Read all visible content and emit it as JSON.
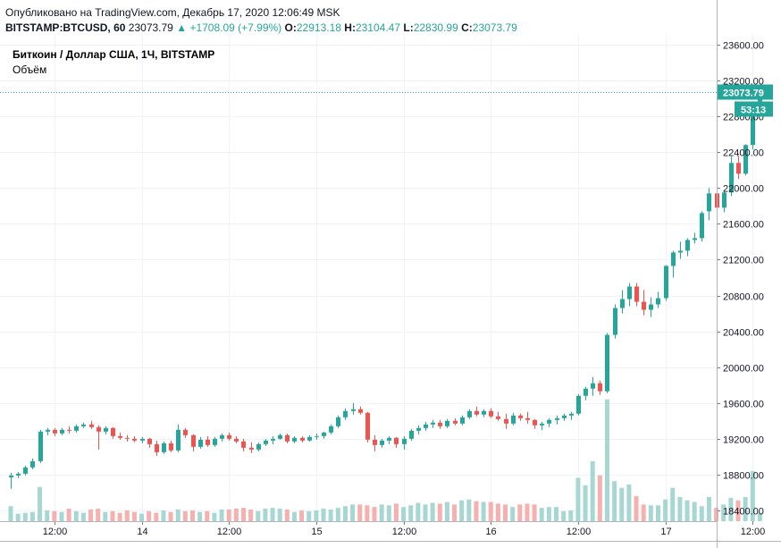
{
  "header": {
    "published": "Опубликовано на TradingView.com, Декабрь 17, 2020 12:06:49 MSK",
    "symbol": "BITSTAMP:BTCUSD, 60",
    "price": "23073.79",
    "change_arrow": "▲",
    "change": "+1708.09 (+7.99%)",
    "o_label": "O:",
    "o": "22913.18",
    "h_label": "H:",
    "h": "23104.47",
    "l_label": "L:",
    "l": "22830.99",
    "c_label": "C:",
    "c": "23073.79"
  },
  "legend": {
    "title": "Биткоин / Доллар США, 1Ч, BITSTAMP",
    "volume": "Объём"
  },
  "price_badge": {
    "value": "23073.79",
    "countdown": "53:13"
  },
  "colors": {
    "up": "#26a69a",
    "down": "#ef5350",
    "up_vol": "#a7d7d2",
    "down_vol": "#f6b0ae",
    "grid": "#f0f3fa",
    "axis": "#131722"
  },
  "chart_data": {
    "type": "candlestick",
    "yaxis": {
      "min": 18280,
      "max": 23720,
      "ticks": [
        "23600.00",
        "23200.00",
        "22800.00",
        "22400.00",
        "22000.00",
        "21600.00",
        "21200.00",
        "20800.00",
        "20400.00",
        "20000.00",
        "19600.00",
        "19200.00",
        "18800.00",
        "18400.00"
      ]
    },
    "xaxis": {
      "ticks": [
        {
          "index": 6,
          "label": "12:00"
        },
        {
          "index": 18,
          "label": "14"
        },
        {
          "index": 30,
          "label": "12:00"
        },
        {
          "index": 42,
          "label": "15"
        },
        {
          "index": 54,
          "label": "12:00"
        },
        {
          "index": 66,
          "label": "16"
        },
        {
          "index": 78,
          "label": "12:00"
        },
        {
          "index": 90,
          "label": "17"
        },
        {
          "index": 102,
          "label": "12:00"
        }
      ]
    },
    "last_price": 23073.79,
    "candles": [
      [
        18770,
        18820,
        18640,
        18790,
        180
      ],
      [
        18790,
        18830,
        18760,
        18810,
        90
      ],
      [
        18810,
        18900,
        18790,
        18880,
        100
      ],
      [
        18880,
        18980,
        18860,
        18950,
        110
      ],
      [
        18950,
        19300,
        18930,
        19280,
        410
      ],
      [
        19280,
        19320,
        19240,
        19300,
        130
      ],
      [
        19300,
        19320,
        19230,
        19260,
        120
      ],
      [
        19260,
        19320,
        19240,
        19300,
        110
      ],
      [
        19300,
        19340,
        19260,
        19290,
        150
      ],
      [
        19290,
        19360,
        19270,
        19340,
        120
      ],
      [
        19340,
        19380,
        19320,
        19360,
        100
      ],
      [
        19360,
        19400,
        19310,
        19330,
        140
      ],
      [
        19330,
        19350,
        19080,
        19280,
        150
      ],
      [
        19280,
        19340,
        19250,
        19320,
        110
      ],
      [
        19320,
        19330,
        19200,
        19230,
        120
      ],
      [
        19230,
        19270,
        19190,
        19210,
        100
      ],
      [
        19210,
        19240,
        19170,
        19200,
        130
      ],
      [
        19200,
        19230,
        19160,
        19180,
        110
      ],
      [
        19180,
        19220,
        19150,
        19200,
        90
      ],
      [
        19200,
        19210,
        19100,
        19140,
        120
      ],
      [
        19140,
        19180,
        19010,
        19050,
        100
      ],
      [
        19050,
        19170,
        19030,
        19150,
        130
      ],
      [
        19150,
        19180,
        19050,
        19070,
        110
      ],
      [
        19070,
        19360,
        19050,
        19300,
        140
      ],
      [
        19300,
        19320,
        19210,
        19240,
        120
      ],
      [
        19240,
        19250,
        19060,
        19110,
        130
      ],
      [
        19110,
        19220,
        19090,
        19190,
        110
      ],
      [
        19190,
        19230,
        19110,
        19130,
        120
      ],
      [
        19130,
        19220,
        19110,
        19200,
        100
      ],
      [
        19200,
        19260,
        19170,
        19240,
        140
      ],
      [
        19240,
        19270,
        19180,
        19200,
        140
      ],
      [
        19200,
        19230,
        19150,
        19170,
        150
      ],
      [
        19170,
        19200,
        19060,
        19100,
        160
      ],
      [
        19100,
        19160,
        19040,
        19080,
        140
      ],
      [
        19080,
        19160,
        19060,
        19140,
        120
      ],
      [
        19140,
        19200,
        19120,
        19180,
        150
      ],
      [
        19180,
        19230,
        19140,
        19200,
        160
      ],
      [
        19200,
        19260,
        19190,
        19240,
        150
      ],
      [
        19240,
        19260,
        19150,
        19170,
        140
      ],
      [
        19170,
        19230,
        19150,
        19210,
        110
      ],
      [
        19210,
        19230,
        19160,
        19180,
        130
      ],
      [
        19180,
        19240,
        19170,
        19220,
        120
      ],
      [
        19220,
        19260,
        19190,
        19230,
        130
      ],
      [
        19230,
        19280,
        19200,
        19270,
        150
      ],
      [
        19270,
        19360,
        19250,
        19340,
        140
      ],
      [
        19340,
        19460,
        19320,
        19440,
        160
      ],
      [
        19440,
        19540,
        19410,
        19510,
        180
      ],
      [
        19510,
        19600,
        19470,
        19530,
        200
      ],
      [
        19530,
        19560,
        19470,
        19490,
        200
      ],
      [
        19490,
        19500,
        19160,
        19190,
        190
      ],
      [
        19190,
        19240,
        19060,
        19130,
        170
      ],
      [
        19130,
        19200,
        19100,
        19180,
        200
      ],
      [
        19180,
        19230,
        19140,
        19210,
        190
      ],
      [
        19210,
        19220,
        19100,
        19140,
        210
      ],
      [
        19140,
        19230,
        19080,
        19200,
        170
      ],
      [
        19200,
        19310,
        19180,
        19290,
        190
      ],
      [
        19290,
        19350,
        19250,
        19320,
        220
      ],
      [
        19320,
        19390,
        19290,
        19360,
        200
      ],
      [
        19360,
        19410,
        19320,
        19380,
        220
      ],
      [
        19380,
        19410,
        19310,
        19340,
        210
      ],
      [
        19340,
        19420,
        19320,
        19400,
        230
      ],
      [
        19400,
        19430,
        19350,
        19370,
        200
      ],
      [
        19370,
        19460,
        19350,
        19440,
        250
      ],
      [
        19440,
        19530,
        19420,
        19510,
        260
      ],
      [
        19510,
        19560,
        19450,
        19470,
        240
      ],
      [
        19470,
        19530,
        19440,
        19510,
        230
      ],
      [
        19510,
        19540,
        19430,
        19450,
        230
      ],
      [
        19450,
        19500,
        19400,
        19420,
        210
      ],
      [
        19420,
        19480,
        19310,
        19370,
        200
      ],
      [
        19370,
        19490,
        19350,
        19460,
        170
      ],
      [
        19460,
        19480,
        19400,
        19430,
        200
      ],
      [
        19430,
        19500,
        19370,
        19410,
        210
      ],
      [
        19410,
        19420,
        19310,
        19350,
        200
      ],
      [
        19350,
        19390,
        19300,
        19370,
        160
      ],
      [
        19370,
        19430,
        19330,
        19410,
        170
      ],
      [
        19410,
        19460,
        19360,
        19430,
        170
      ],
      [
        19430,
        19480,
        19400,
        19460,
        120
      ],
      [
        19460,
        19500,
        19410,
        19480,
        130
      ],
      [
        19480,
        19700,
        19460,
        19680,
        520
      ],
      [
        19680,
        19780,
        19630,
        19760,
        430
      ],
      [
        19760,
        19890,
        19680,
        19820,
        720
      ],
      [
        19820,
        19850,
        19690,
        19730,
        550
      ],
      [
        19730,
        20380,
        19710,
        20360,
        1460
      ],
      [
        20360,
        20700,
        20320,
        20660,
        480
      ],
      [
        20660,
        20860,
        20600,
        20760,
        400
      ],
      [
        20760,
        20940,
        20680,
        20900,
        440
      ],
      [
        20900,
        20940,
        20680,
        20730,
        300
      ],
      [
        20730,
        20860,
        20580,
        20640,
        200
      ],
      [
        20640,
        20780,
        20560,
        20700,
        190
      ],
      [
        20700,
        20840,
        20660,
        20770,
        190
      ],
      [
        20770,
        21140,
        20740,
        21130,
        260
      ],
      [
        21130,
        21300,
        21000,
        21280,
        400
      ],
      [
        21280,
        21400,
        21210,
        21300,
        290
      ],
      [
        21300,
        21440,
        21240,
        21420,
        250
      ],
      [
        21420,
        21500,
        21380,
        21440,
        230
      ],
      [
        21440,
        21740,
        21400,
        21720,
        180
      ],
      [
        21740,
        22000,
        21640,
        21940,
        290
      ],
      [
        21940,
        22000,
        21720,
        21780,
        160
      ],
      [
        21780,
        21970,
        21730,
        21950,
        200
      ],
      [
        21950,
        22350,
        21910,
        22280,
        280
      ],
      [
        22280,
        22360,
        22100,
        22160,
        250
      ],
      [
        22160,
        22490,
        22140,
        22480,
        290
      ],
      [
        22480,
        22900,
        22430,
        22900,
        600
      ],
      [
        22913.18,
        23104.47,
        22830.99,
        23073.79,
        100
      ]
    ]
  }
}
